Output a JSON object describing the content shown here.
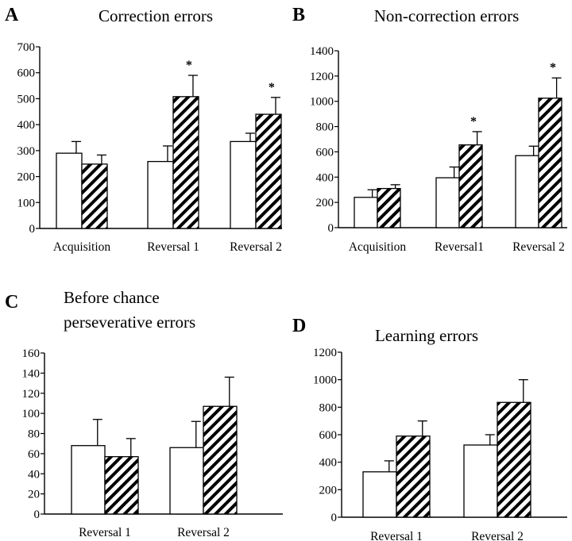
{
  "chart_data": [
    {
      "type": "bar",
      "panel_label": "A",
      "title": [
        "Correction errors"
      ],
      "categories": [
        "Acquisition",
        "Reversal 1",
        "Reversal 2"
      ],
      "yticks": [
        0,
        100,
        200,
        300,
        400,
        500,
        600,
        700
      ],
      "ylim": [
        0,
        700
      ],
      "series": [
        {
          "pattern": "open",
          "values": [
            290,
            258,
            335
          ],
          "errors": [
            45,
            60,
            32
          ]
        },
        {
          "pattern": "hatched",
          "values": [
            248,
            508,
            440
          ],
          "errors": [
            35,
            82,
            65
          ]
        }
      ],
      "significance": [
        "",
        "*",
        "*"
      ]
    },
    {
      "type": "bar",
      "panel_label": "B",
      "title": [
        "Non-correction errors"
      ],
      "categories": [
        "Acquisition",
        "Reversal1",
        "Reversal 2"
      ],
      "yticks": [
        0,
        200,
        400,
        600,
        800,
        1000,
        1200,
        1400
      ],
      "ylim": [
        0,
        1400
      ],
      "series": [
        {
          "pattern": "open",
          "values": [
            240,
            395,
            570
          ],
          "errors": [
            60,
            85,
            75
          ]
        },
        {
          "pattern": "hatched",
          "values": [
            310,
            655,
            1025
          ],
          "errors": [
            30,
            105,
            160
          ]
        }
      ],
      "significance": [
        "",
        "*",
        "*"
      ]
    },
    {
      "type": "bar",
      "panel_label": "C",
      "title": [
        "Before chance",
        "perseverative errors"
      ],
      "categories": [
        "Reversal 1",
        "Reversal 2"
      ],
      "yticks": [
        0,
        20,
        40,
        60,
        80,
        100,
        120,
        140,
        160
      ],
      "ylim": [
        0,
        160
      ],
      "series": [
        {
          "pattern": "open",
          "values": [
            68,
            66
          ],
          "errors": [
            26,
            26
          ]
        },
        {
          "pattern": "hatched",
          "values": [
            57,
            107
          ],
          "errors": [
            18,
            29
          ]
        }
      ],
      "significance": [
        "",
        ""
      ]
    },
    {
      "type": "bar",
      "panel_label": "D",
      "title": [
        "Learning errors"
      ],
      "categories": [
        "Reversal 1",
        "Reversal 2"
      ],
      "yticks": [
        0,
        200,
        400,
        600,
        800,
        1000,
        1200
      ],
      "ylim": [
        0,
        1200
      ],
      "series": [
        {
          "pattern": "open",
          "values": [
            330,
            525
          ],
          "errors": [
            80,
            75
          ]
        },
        {
          "pattern": "hatched",
          "values": [
            590,
            835
          ],
          "errors": [
            110,
            165
          ]
        }
      ],
      "significance": [
        "",
        ""
      ]
    }
  ]
}
